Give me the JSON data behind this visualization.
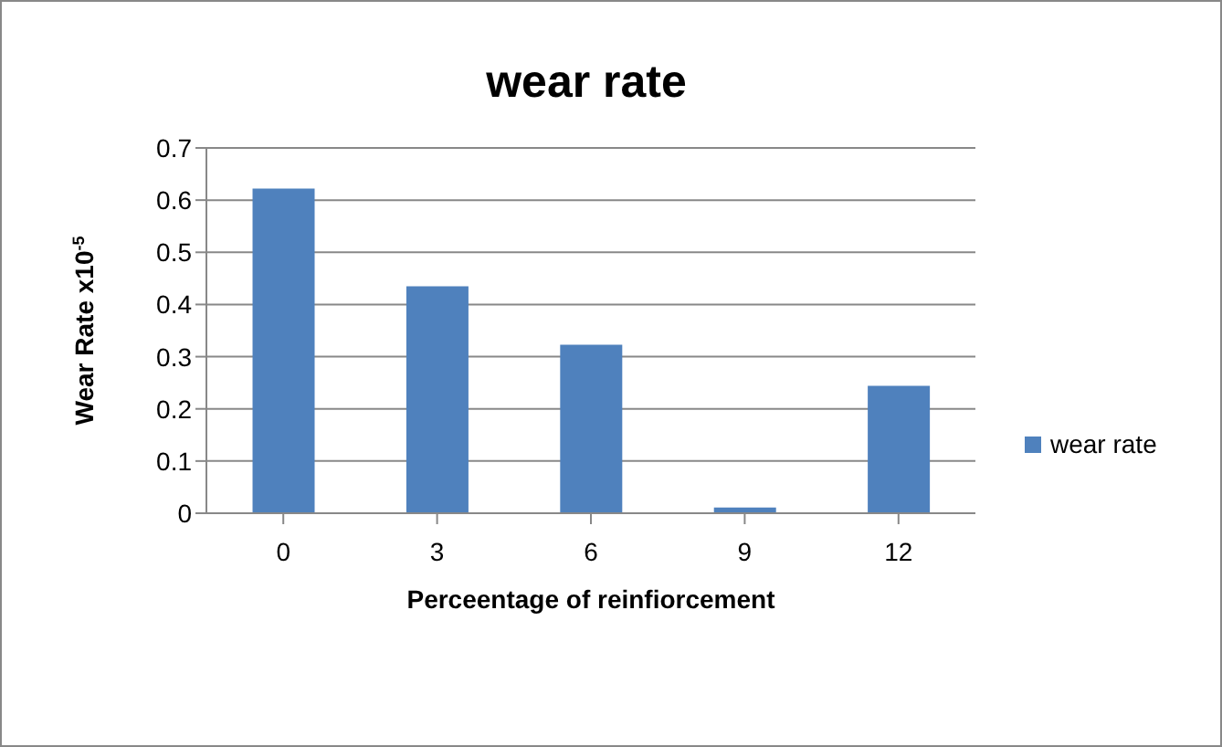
{
  "chart_data": {
    "type": "bar",
    "title": "wear rate",
    "xlabel": "Perceentage of reinfiorcement",
    "ylabel": "Wear Rate x10$^{-5}$",
    "categories": [
      "0",
      "3",
      "6",
      "9",
      "12"
    ],
    "series": [
      {
        "name": "wear rate",
        "color": "#4f81bd",
        "values": [
          0.622,
          0.435,
          0.323,
          0.011,
          0.244
        ]
      }
    ],
    "ylim": [
      0,
      0.7
    ],
    "yticks": [
      0,
      0.1,
      0.2,
      0.3,
      0.4,
      0.5,
      0.6,
      0.7
    ],
    "grid": "y",
    "legend": "right"
  }
}
